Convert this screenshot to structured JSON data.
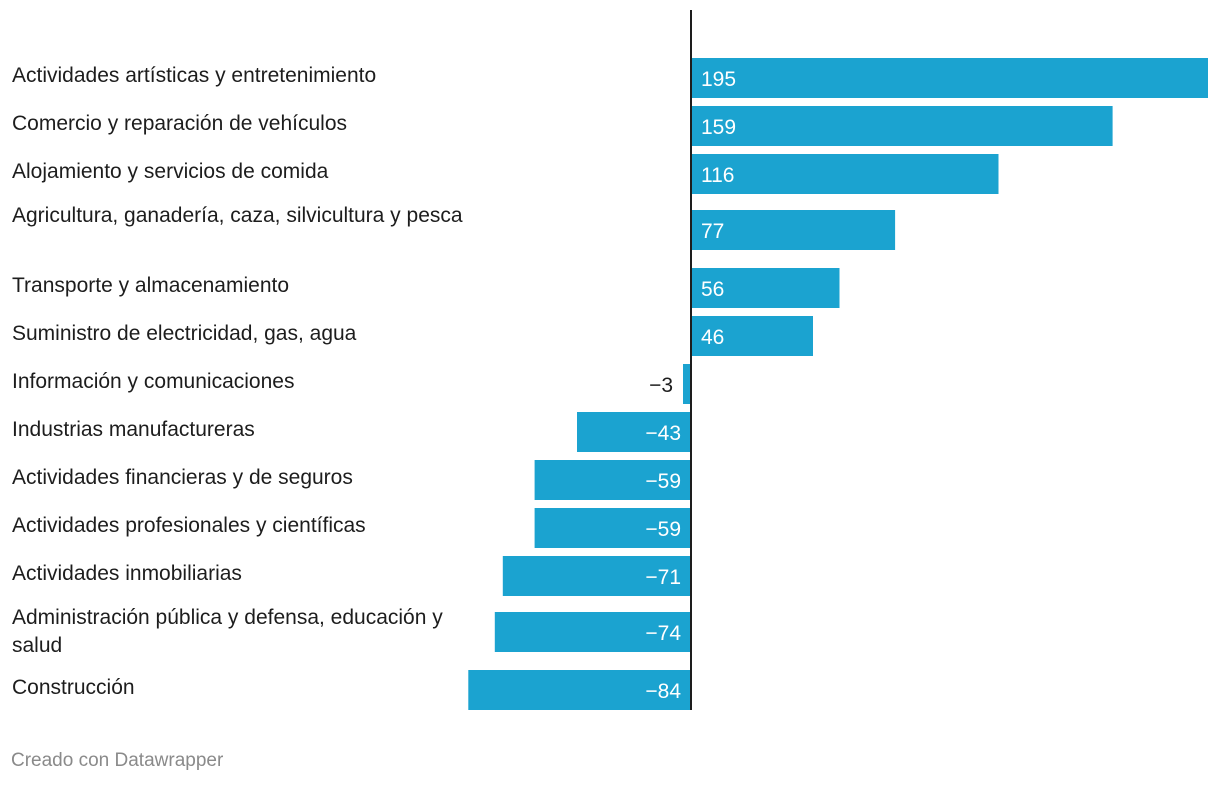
{
  "chart_data": {
    "type": "bar",
    "orientation": "horizontal",
    "categories": [
      "Actividades artísticas y entretenimiento",
      "Comercio y reparación de vehículos",
      "Alojamiento y servicios de comida",
      "Agricultura, ganadería, caza, silvicultura y pesca",
      "Transporte y almacenamiento",
      "Suministro de electricidad, gas, agua",
      "Información y comunicaciones",
      "Industrias manufactureras",
      "Actividades financieras y de seguros",
      "Actividades profesionales y científicas",
      "Actividades inmobiliarias",
      "Administración pública y defensa, educación y salud",
      "Construcción"
    ],
    "values": [
      195,
      159,
      116,
      77,
      56,
      46,
      -3,
      -43,
      -59,
      -59,
      -71,
      -74,
      -84
    ],
    "value_labels": [
      "195",
      "159",
      "116",
      "77",
      "56",
      "46",
      "−3",
      "−43",
      "−59",
      "−59",
      "−71",
      "−74",
      "−84"
    ],
    "xlim": [
      -84,
      195
    ],
    "bar_color": "#1ba3d0",
    "title": "",
    "xlabel": "",
    "ylabel": ""
  },
  "footer": {
    "credit": "Creado con Datawrapper"
  }
}
